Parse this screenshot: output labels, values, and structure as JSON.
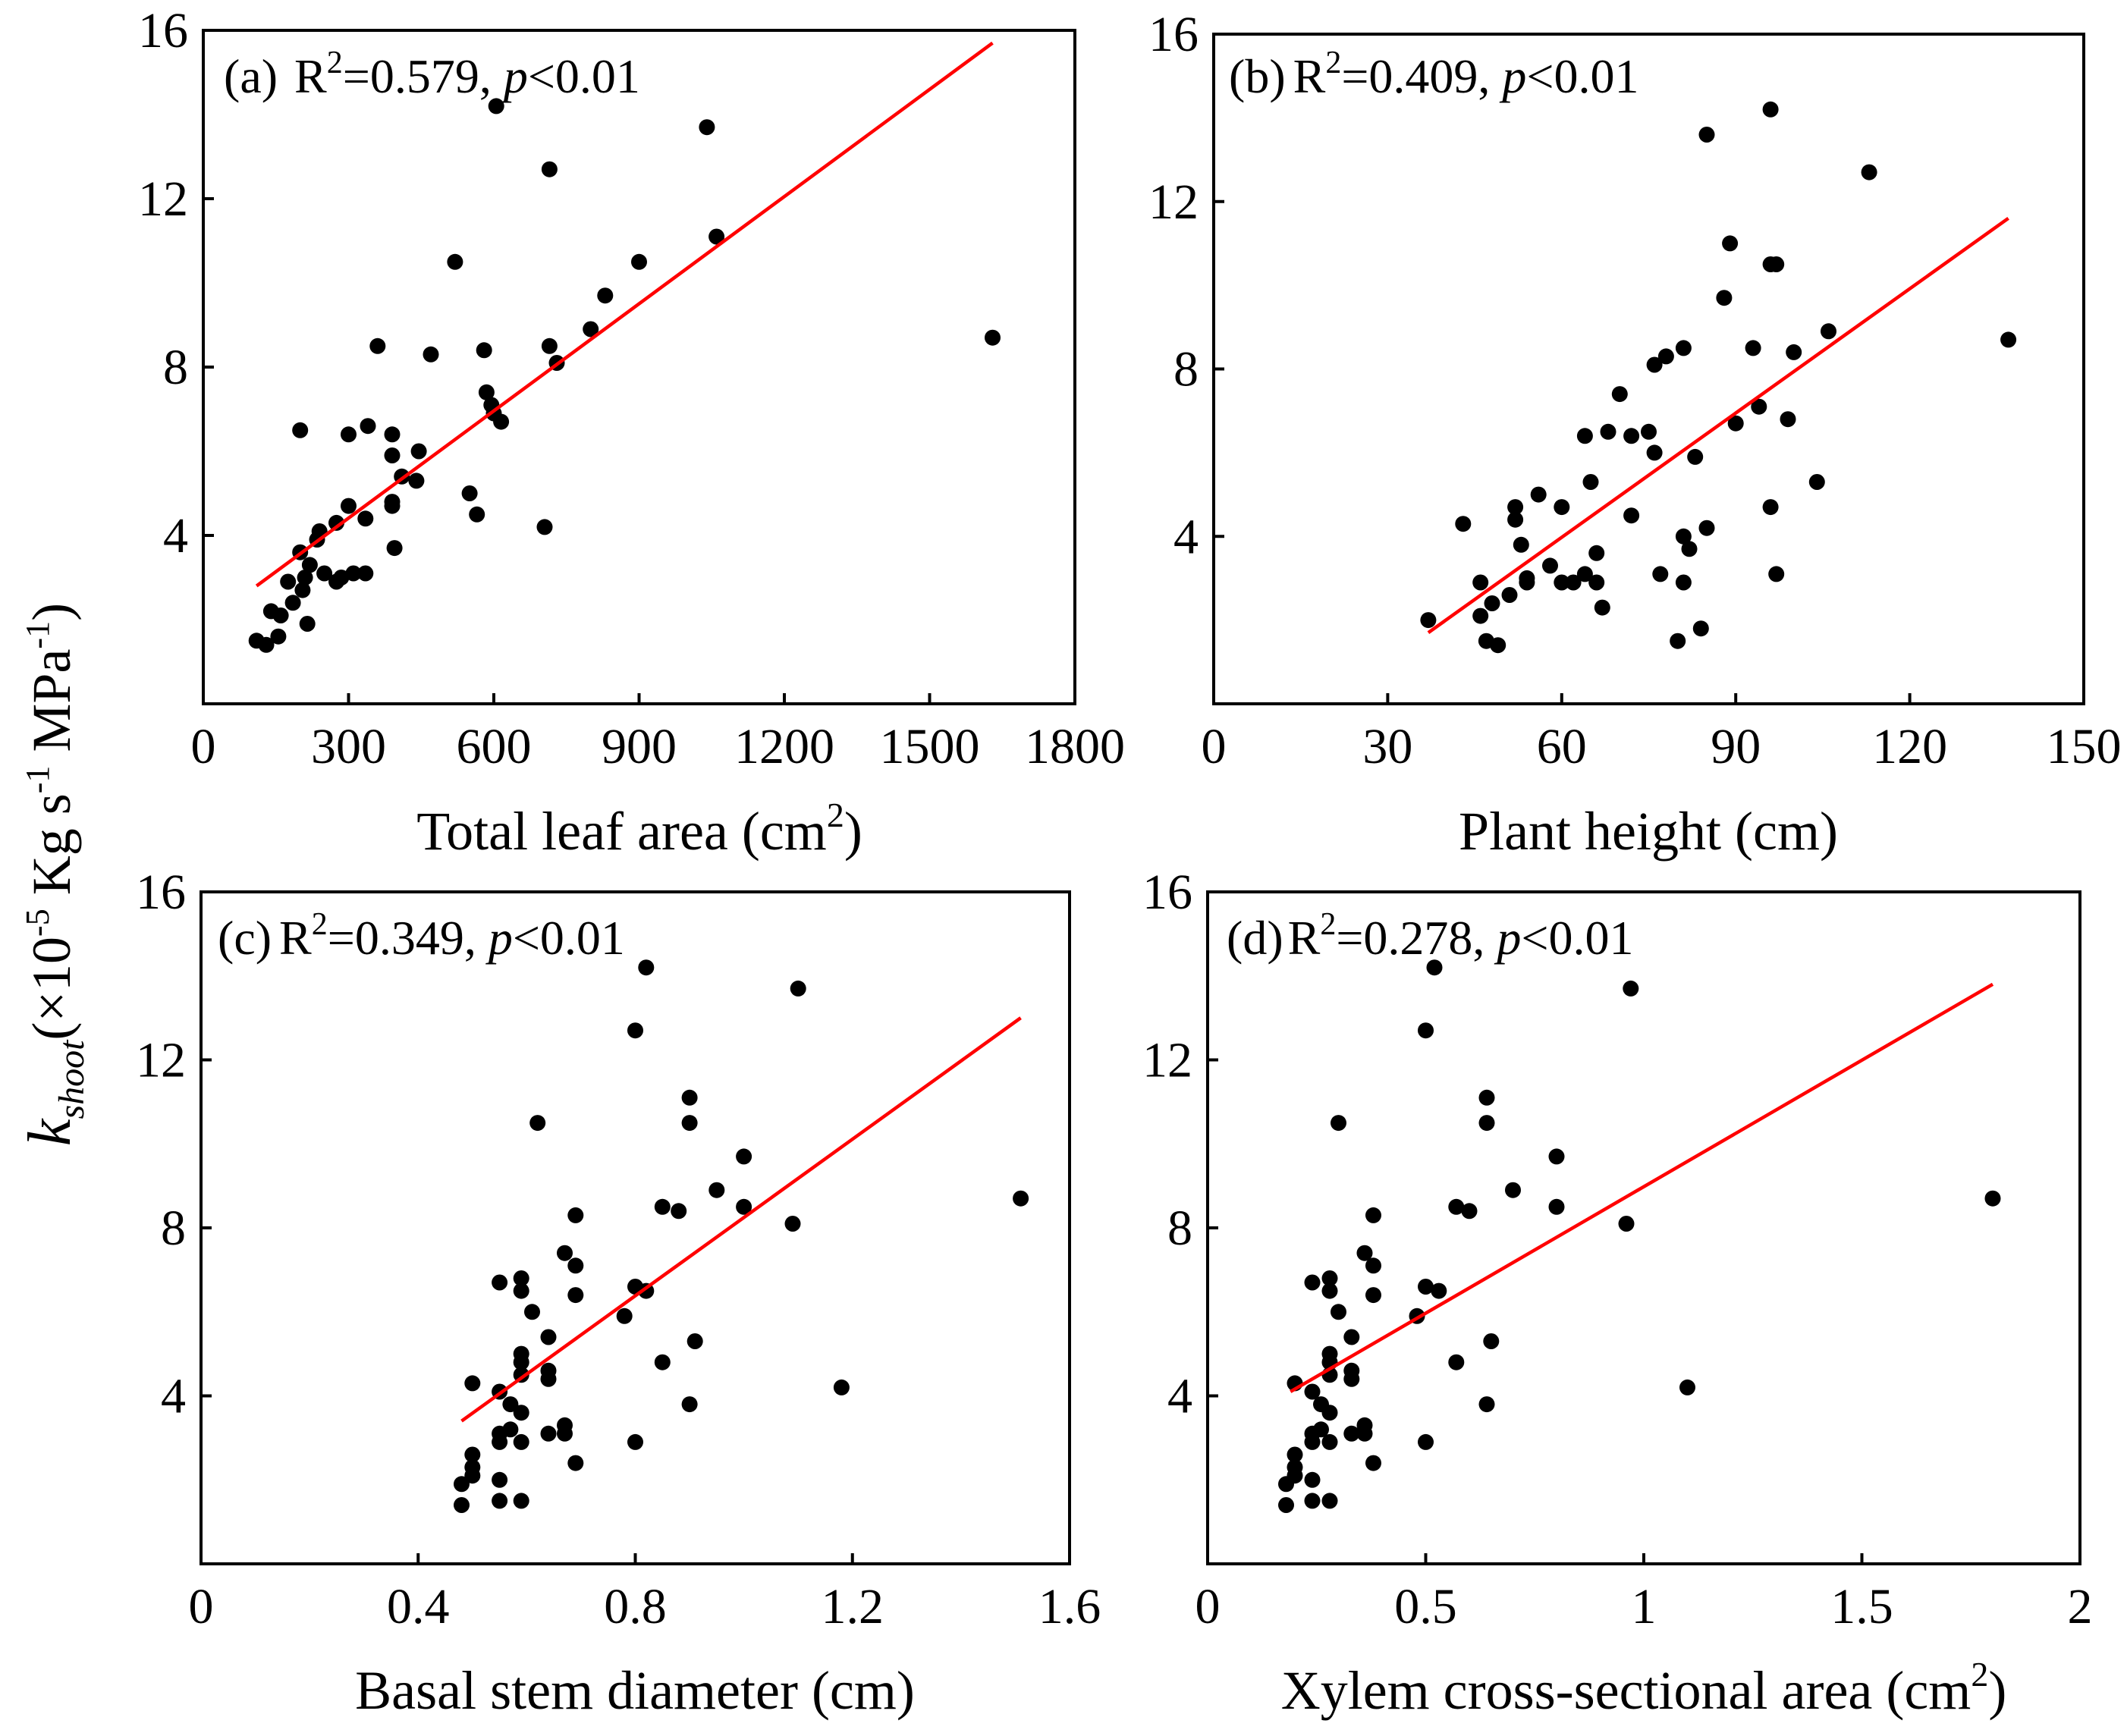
{
  "figure": {
    "ylabel": {
      "symbol": "k",
      "subscript": "shoot",
      "units_prefix": "(×10",
      "exp_minus5": "-5",
      "units_mid": " Kg s",
      "exp_minus1a": "-1",
      "units_mpa": " MPa",
      "exp_minus1b": "-1",
      "units_close": ")"
    }
  },
  "chart_data": [
    {
      "type": "scatter",
      "panel": "(a)",
      "r2_prefix": "R",
      "r2_exp": "2",
      "r2_value": "=0.579, ",
      "p_symbol": "p",
      "p_value": "<0.01",
      "xlabel_main": "Total leaf area (cm",
      "xlabel_sup": "2",
      "xlabel_close": ")",
      "xlim": [
        0,
        1800
      ],
      "ylim": [
        0,
        16
      ],
      "xticks": [
        0,
        300,
        600,
        900,
        1200,
        1500,
        1800
      ],
      "yticks": [
        4,
        8,
        12,
        16
      ],
      "fit": {
        "x": [
          110,
          1630
        ],
        "y": [
          2.8,
          15.7
        ]
      },
      "points": [
        [
          110,
          1.5
        ],
        [
          130,
          1.4
        ],
        [
          140,
          2.2
        ],
        [
          155,
          1.6
        ],
        [
          160,
          2.1
        ],
        [
          175,
          2.9
        ],
        [
          185,
          2.4
        ],
        [
          200,
          6.5
        ],
        [
          200,
          3.6
        ],
        [
          205,
          2.7
        ],
        [
          210,
          3.0
        ],
        [
          215,
          1.9
        ],
        [
          220,
          3.3
        ],
        [
          235,
          3.9
        ],
        [
          240,
          4.1
        ],
        [
          250,
          3.1
        ],
        [
          275,
          4.3
        ],
        [
          275,
          2.9
        ],
        [
          285,
          3.0
        ],
        [
          300,
          4.7
        ],
        [
          300,
          6.4
        ],
        [
          310,
          3.1
        ],
        [
          335,
          3.1
        ],
        [
          335,
          4.4
        ],
        [
          340,
          6.6
        ],
        [
          360,
          8.5
        ],
        [
          390,
          6.4
        ],
        [
          390,
          5.9
        ],
        [
          390,
          4.8
        ],
        [
          390,
          4.7
        ],
        [
          395,
          3.7
        ],
        [
          410,
          5.4
        ],
        [
          440,
          5.3
        ],
        [
          445,
          6.0
        ],
        [
          470,
          8.3
        ],
        [
          520,
          10.5
        ],
        [
          550,
          5.0
        ],
        [
          565,
          4.5
        ],
        [
          580,
          8.4
        ],
        [
          585,
          7.4
        ],
        [
          595,
          7.1
        ],
        [
          600,
          6.9
        ],
        [
          605,
          14.2
        ],
        [
          615,
          6.7
        ],
        [
          705,
          4.2
        ],
        [
          715,
          8.5
        ],
        [
          715,
          12.7
        ],
        [
          730,
          8.1
        ],
        [
          800,
          8.9
        ],
        [
          830,
          9.7
        ],
        [
          900,
          10.5
        ],
        [
          1040,
          13.7
        ],
        [
          1060,
          11.1
        ],
        [
          1630,
          8.7
        ]
      ]
    },
    {
      "type": "scatter",
      "panel": "(b)",
      "r2_prefix": "R",
      "r2_exp": "2",
      "r2_value": "=0.409, ",
      "p_symbol": "p",
      "p_value": "<0.01",
      "xlabel_main": "Plant height (cm)",
      "xlabel_sup": "",
      "xlabel_close": "",
      "xlim": [
        0,
        150
      ],
      "ylim": [
        0,
        16
      ],
      "xticks": [
        0,
        30,
        60,
        90,
        120,
        150
      ],
      "yticks": [
        4,
        8,
        12,
        16
      ],
      "fit": {
        "x": [
          37,
          137
        ],
        "y": [
          1.7,
          11.6
        ]
      },
      "points": [
        [
          37,
          2.0
        ],
        [
          43,
          4.3
        ],
        [
          46,
          2.9
        ],
        [
          46,
          2.1
        ],
        [
          47,
          1.5
        ],
        [
          48,
          2.4
        ],
        [
          49,
          1.4
        ],
        [
          51,
          2.6
        ],
        [
          52,
          4.7
        ],
        [
          52,
          4.4
        ],
        [
          53,
          3.8
        ],
        [
          54,
          3.0
        ],
        [
          54,
          2.9
        ],
        [
          56,
          5.0
        ],
        [
          58,
          3.3
        ],
        [
          60,
          4.7
        ],
        [
          60,
          2.9
        ],
        [
          62,
          2.9
        ],
        [
          64,
          6.4
        ],
        [
          64,
          3.1
        ],
        [
          65,
          5.3
        ],
        [
          66,
          3.6
        ],
        [
          66,
          2.9
        ],
        [
          67,
          2.3
        ],
        [
          68,
          6.5
        ],
        [
          70,
          7.4
        ],
        [
          72,
          6.4
        ],
        [
          72,
          4.5
        ],
        [
          75,
          6.5
        ],
        [
          76,
          6.0
        ],
        [
          76,
          8.1
        ],
        [
          77,
          3.1
        ],
        [
          78,
          8.3
        ],
        [
          80,
          1.5
        ],
        [
          81,
          4.0
        ],
        [
          81,
          8.5
        ],
        [
          81,
          2.9
        ],
        [
          82,
          3.7
        ],
        [
          83,
          5.9
        ],
        [
          84,
          1.8
        ],
        [
          85,
          4.2
        ],
        [
          85,
          13.6
        ],
        [
          88,
          9.7
        ],
        [
          89,
          11.0
        ],
        [
          90,
          6.7
        ],
        [
          93,
          8.5
        ],
        [
          94,
          7.1
        ],
        [
          96,
          10.5
        ],
        [
          96,
          14.2
        ],
        [
          96,
          4.7
        ],
        [
          97,
          10.5
        ],
        [
          97,
          3.1
        ],
        [
          99,
          6.8
        ],
        [
          100,
          8.4
        ],
        [
          104,
          5.3
        ],
        [
          106,
          8.9
        ],
        [
          113,
          12.7
        ],
        [
          137,
          8.7
        ]
      ]
    },
    {
      "type": "scatter",
      "panel": "(c)",
      "r2_prefix": "R",
      "r2_exp": "2",
      "r2_value": "=0.349, ",
      "p_symbol": "p",
      "p_value": "<0.01",
      "xlabel_main": "Basal stem diameter (cm)",
      "xlabel_sup": "",
      "xlabel_close": "",
      "xlim": [
        0,
        1.6
      ],
      "ylim": [
        0,
        16
      ],
      "xticks": [
        0,
        0.4,
        0.8,
        1.2,
        1.6
      ],
      "yticks": [
        4,
        8,
        12,
        16
      ],
      "fit": {
        "x": [
          0.48,
          1.51
        ],
        "y": [
          3.4,
          13.0
        ]
      },
      "points": [
        [
          0.48,
          1.9
        ],
        [
          0.48,
          1.4
        ],
        [
          0.5,
          2.6
        ],
        [
          0.5,
          2.3
        ],
        [
          0.5,
          2.1
        ],
        [
          0.5,
          4.3
        ],
        [
          0.55,
          6.7
        ],
        [
          0.55,
          4.1
        ],
        [
          0.55,
          3.1
        ],
        [
          0.55,
          2.9
        ],
        [
          0.55,
          2.0
        ],
        [
          0.55,
          1.5
        ],
        [
          0.57,
          3.8
        ],
        [
          0.57,
          3.2
        ],
        [
          0.59,
          6.8
        ],
        [
          0.59,
          6.5
        ],
        [
          0.59,
          5.0
        ],
        [
          0.59,
          4.8
        ],
        [
          0.59,
          4.5
        ],
        [
          0.59,
          3.6
        ],
        [
          0.59,
          2.9
        ],
        [
          0.59,
          1.5
        ],
        [
          0.61,
          6.0
        ],
        [
          0.62,
          10.5
        ],
        [
          0.64,
          5.4
        ],
        [
          0.64,
          4.6
        ],
        [
          0.64,
          4.4
        ],
        [
          0.64,
          3.1
        ],
        [
          0.67,
          7.4
        ],
        [
          0.67,
          3.3
        ],
        [
          0.67,
          3.1
        ],
        [
          0.69,
          8.3
        ],
        [
          0.69,
          7.1
        ],
        [
          0.69,
          6.4
        ],
        [
          0.69,
          2.4
        ],
        [
          0.78,
          5.9
        ],
        [
          0.8,
          6.6
        ],
        [
          0.8,
          2.9
        ],
        [
          0.8,
          12.7
        ],
        [
          0.82,
          14.2
        ],
        [
          0.82,
          6.5
        ],
        [
          0.85,
          4.8
        ],
        [
          0.85,
          8.5
        ],
        [
          0.88,
          8.4
        ],
        [
          0.9,
          11.1
        ],
        [
          0.9,
          10.5
        ],
        [
          0.9,
          3.8
        ],
        [
          0.91,
          5.3
        ],
        [
          0.95,
          8.9
        ],
        [
          1.0,
          9.7
        ],
        [
          1.0,
          8.5
        ],
        [
          1.09,
          8.1
        ],
        [
          1.1,
          13.7
        ],
        [
          1.18,
          4.2
        ],
        [
          1.51,
          8.7
        ]
      ]
    },
    {
      "type": "scatter",
      "panel": "(d)",
      "r2_prefix": "R",
      "r2_exp": "2",
      "r2_value": "=0.278, ",
      "p_symbol": "p",
      "p_value": "<0.01",
      "xlabel_main": "Xylem cross-sectional area (cm",
      "xlabel_sup": "2",
      "xlabel_close": ")",
      "xlim": [
        0,
        2
      ],
      "ylim": [
        0,
        16
      ],
      "xticks": [
        0,
        0.5,
        1,
        1.5,
        2
      ],
      "yticks": [
        4,
        8,
        12,
        16
      ],
      "fit": {
        "x": [
          0.19,
          1.8
        ],
        "y": [
          4.1,
          13.8
        ]
      },
      "points": [
        [
          0.18,
          1.9
        ],
        [
          0.18,
          1.4
        ],
        [
          0.2,
          2.6
        ],
        [
          0.2,
          2.3
        ],
        [
          0.2,
          2.1
        ],
        [
          0.2,
          4.3
        ],
        [
          0.24,
          6.7
        ],
        [
          0.24,
          4.1
        ],
        [
          0.24,
          3.1
        ],
        [
          0.24,
          2.9
        ],
        [
          0.24,
          2.0
        ],
        [
          0.24,
          1.5
        ],
        [
          0.26,
          3.8
        ],
        [
          0.26,
          3.2
        ],
        [
          0.28,
          6.8
        ],
        [
          0.28,
          6.5
        ],
        [
          0.28,
          5.0
        ],
        [
          0.28,
          4.8
        ],
        [
          0.28,
          4.5
        ],
        [
          0.28,
          3.6
        ],
        [
          0.28,
          2.9
        ],
        [
          0.28,
          1.5
        ],
        [
          0.3,
          6.0
        ],
        [
          0.3,
          10.5
        ],
        [
          0.33,
          5.4
        ],
        [
          0.33,
          4.6
        ],
        [
          0.33,
          4.4
        ],
        [
          0.33,
          3.1
        ],
        [
          0.36,
          7.4
        ],
        [
          0.36,
          3.3
        ],
        [
          0.36,
          3.1
        ],
        [
          0.38,
          8.3
        ],
        [
          0.38,
          7.1
        ],
        [
          0.38,
          6.4
        ],
        [
          0.38,
          2.4
        ],
        [
          0.48,
          5.9
        ],
        [
          0.5,
          6.6
        ],
        [
          0.5,
          2.9
        ],
        [
          0.5,
          12.7
        ],
        [
          0.52,
          14.2
        ],
        [
          0.53,
          6.5
        ],
        [
          0.57,
          4.8
        ],
        [
          0.57,
          8.5
        ],
        [
          0.6,
          8.4
        ],
        [
          0.64,
          11.1
        ],
        [
          0.64,
          10.5
        ],
        [
          0.64,
          3.8
        ],
        [
          0.65,
          5.3
        ],
        [
          0.7,
          8.9
        ],
        [
          0.8,
          9.7
        ],
        [
          0.8,
          8.5
        ],
        [
          0.96,
          8.1
        ],
        [
          0.97,
          13.7
        ],
        [
          1.1,
          4.2
        ],
        [
          1.8,
          8.7
        ]
      ]
    }
  ]
}
